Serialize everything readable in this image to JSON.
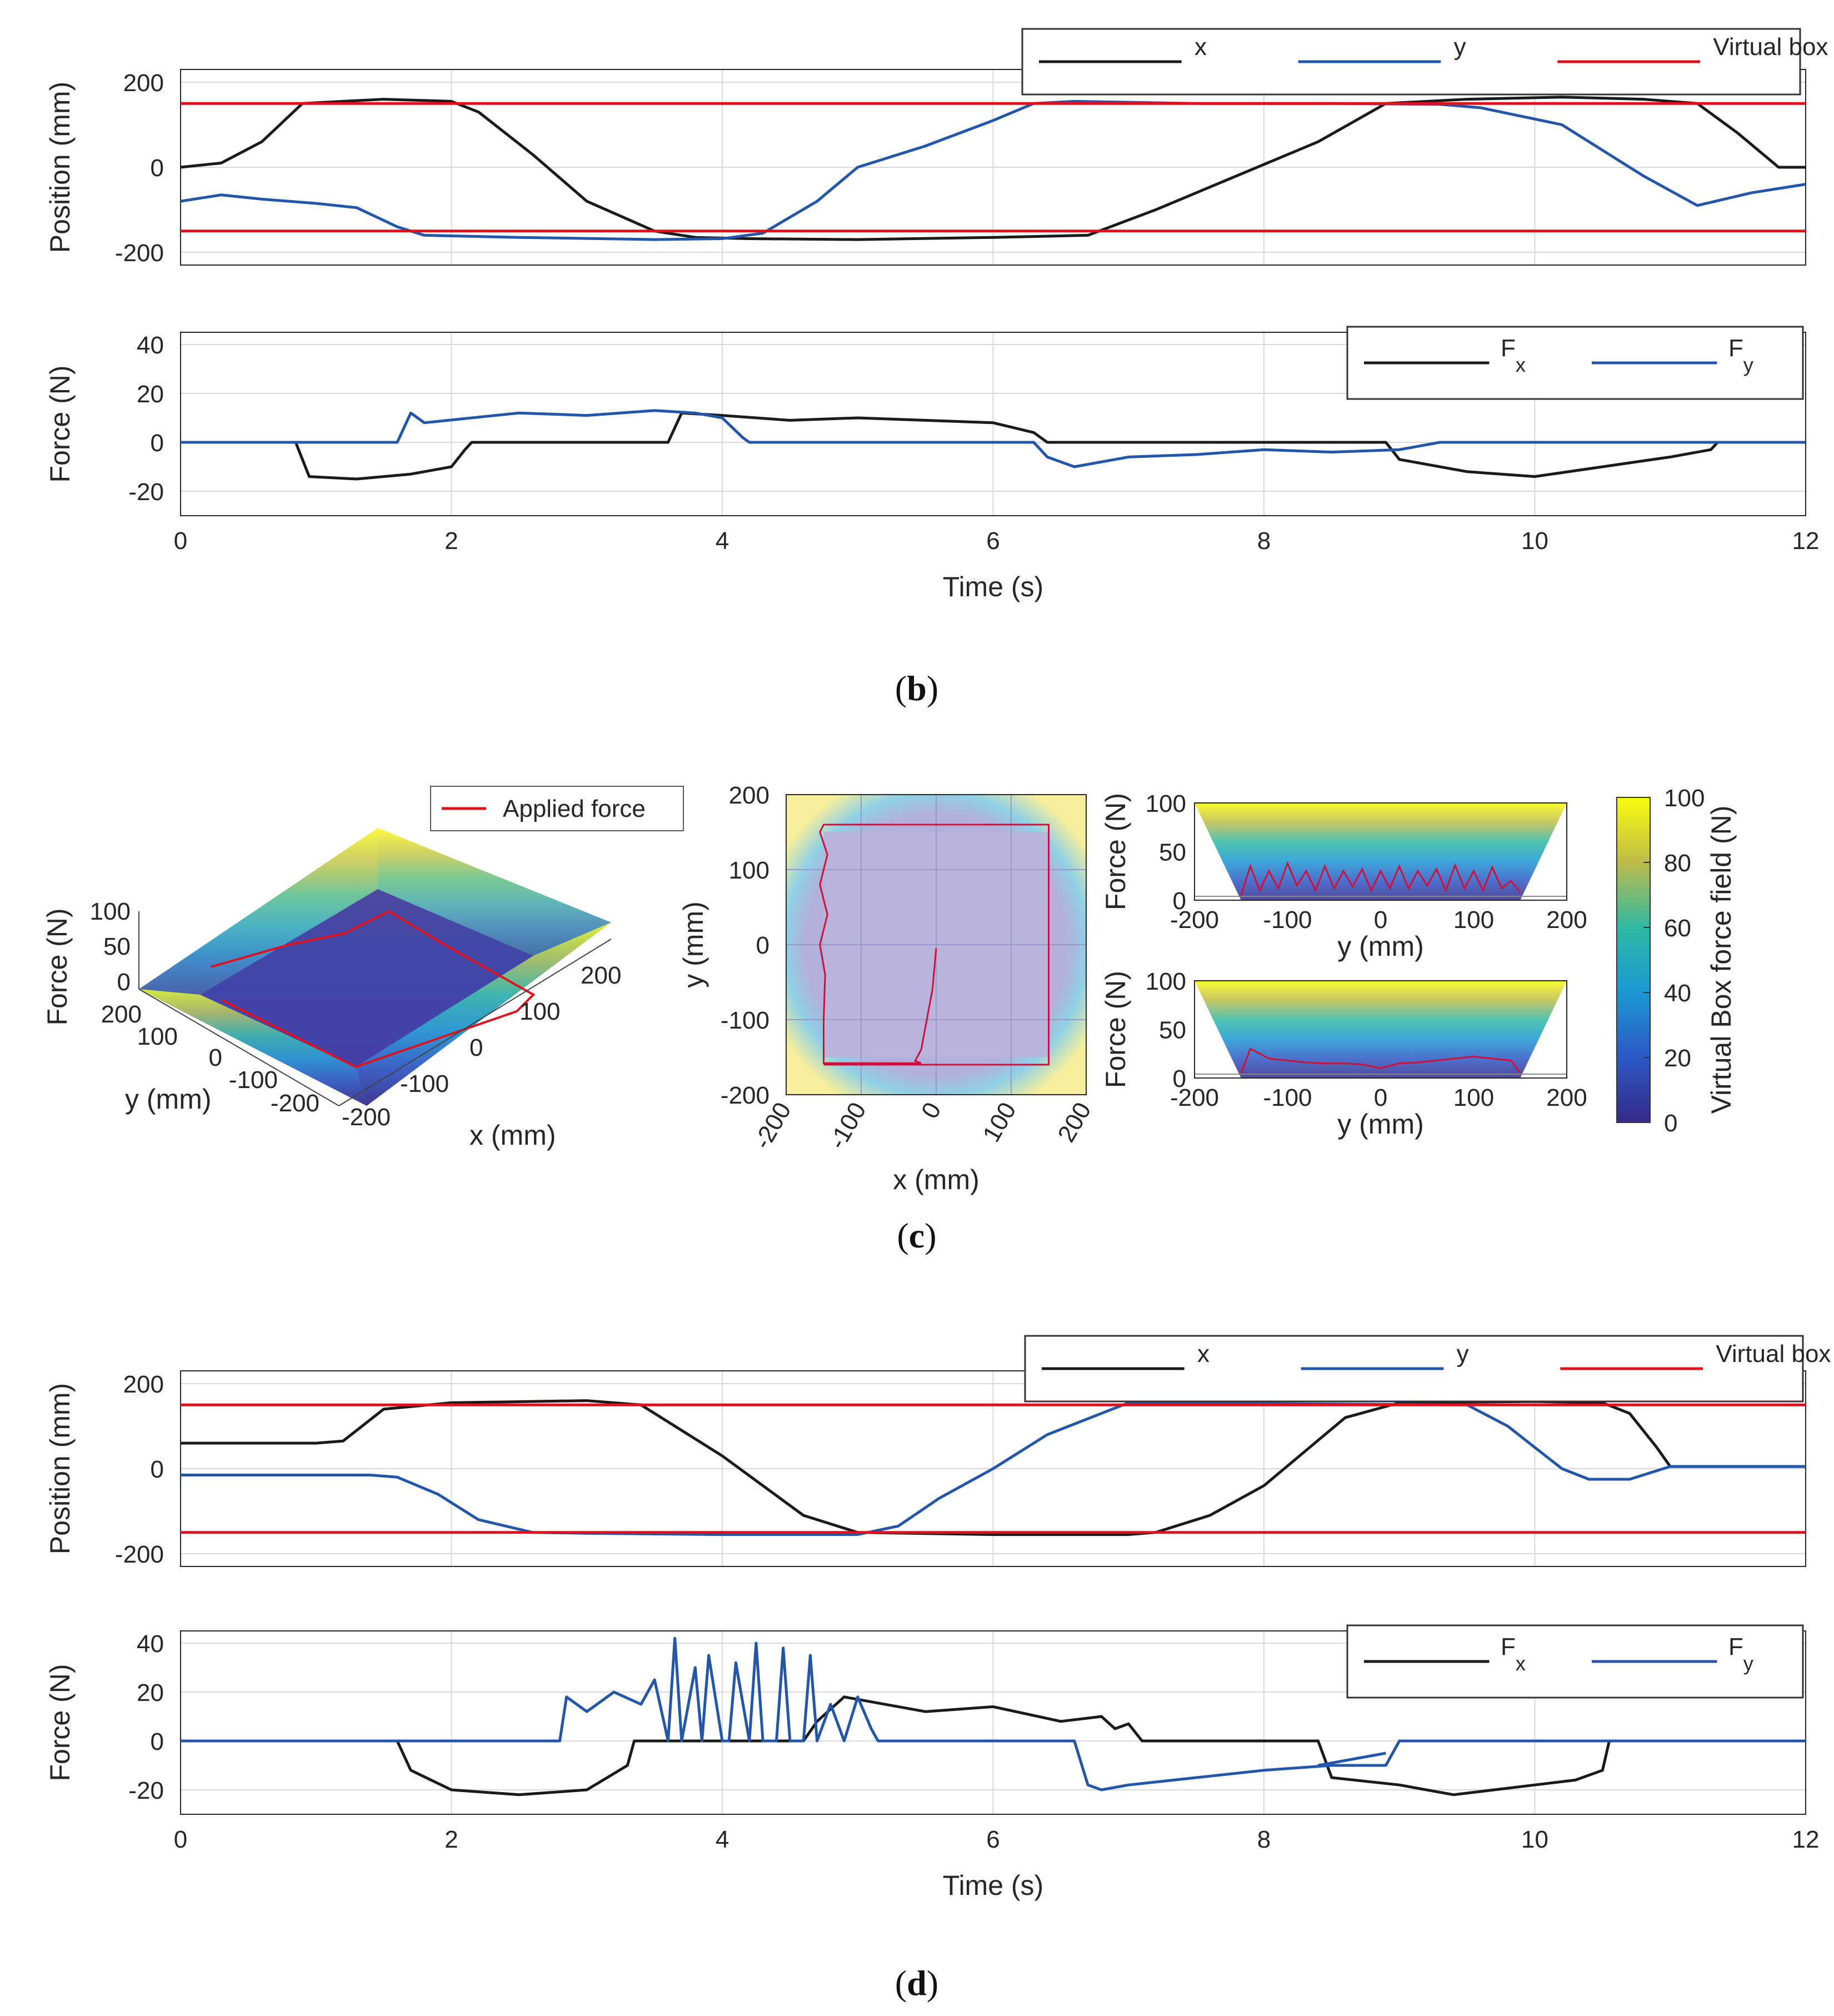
{
  "figure": {
    "panel_b": "b",
    "panel_c": "c",
    "panel_d": "d",
    "colors": {
      "x": "#1a1a1a",
      "y": "#2356a8",
      "box": "#e0111c",
      "grid": "#d9d9d9"
    }
  },
  "chart_data": [
    {
      "id": "b_position",
      "type": "line",
      "ylabel": "Position (mm)",
      "xlim": [
        0,
        12
      ],
      "ylim": [
        -230,
        230
      ],
      "yticks": [
        -200,
        0,
        200
      ],
      "ytick_labels": [
        "-200",
        "0",
        "200"
      ],
      "legend": [
        "x",
        "y",
        "Virtual box"
      ],
      "series": [
        {
          "name": "x",
          "x": [
            0,
            0.3,
            0.6,
            0.9,
            1.5,
            2.0,
            2.2,
            2.6,
            3.0,
            3.5,
            3.8,
            4.2,
            5.0,
            6.0,
            6.7,
            7.2,
            7.8,
            8.4,
            8.9,
            9.5,
            10.2,
            10.8,
            11.2,
            11.5,
            11.8,
            12
          ],
          "y": [
            0,
            10,
            60,
            150,
            160,
            155,
            130,
            30,
            -80,
            -150,
            -165,
            -168,
            -170,
            -165,
            -160,
            -100,
            -20,
            60,
            150,
            160,
            165,
            160,
            150,
            80,
            0,
            0
          ]
        },
        {
          "name": "y",
          "x": [
            0,
            0.3,
            0.6,
            1.0,
            1.3,
            1.6,
            1.8,
            2.5,
            3.5,
            4.0,
            4.3,
            4.7,
            5.0,
            5.5,
            6.0,
            6.3,
            6.6,
            7.5,
            8.5,
            9.3,
            9.6,
            10.2,
            10.8,
            11.2,
            11.6,
            12
          ],
          "y": [
            -80,
            -65,
            -75,
            -85,
            -95,
            -140,
            -160,
            -165,
            -170,
            -168,
            -155,
            -80,
            0,
            50,
            110,
            150,
            155,
            150,
            150,
            148,
            140,
            100,
            -20,
            -90,
            -60,
            -40
          ]
        },
        {
          "name": "Virtual box",
          "x": [
            0,
            12
          ],
          "y": [
            150,
            150
          ]
        },
        {
          "name": "Virtual box",
          "x": [
            0,
            12
          ],
          "y": [
            -150,
            -150
          ]
        }
      ]
    },
    {
      "id": "b_force",
      "type": "line",
      "ylabel": "Force (N)",
      "xlabel": "Time (s)",
      "xlim": [
        0,
        12
      ],
      "ylim": [
        -30,
        45
      ],
      "xticks": [
        0,
        2,
        4,
        6,
        8,
        10,
        12
      ],
      "xtick_labels": [
        "0",
        "2",
        "4",
        "6",
        "8",
        "10",
        "12"
      ],
      "yticks": [
        -20,
        0,
        20,
        40
      ],
      "ytick_labels": [
        "-20",
        "0",
        "20",
        "40"
      ],
      "legend": [
        "F",
        "F"
      ],
      "legend_sub": [
        "x",
        "y"
      ],
      "series": [
        {
          "name": "Fx",
          "x": [
            0,
            0.85,
            0.95,
            1.3,
            1.7,
            2.0,
            2.1,
            2.15,
            3.6,
            3.7,
            4.0,
            4.5,
            5.0,
            5.5,
            6.0,
            6.3,
            6.4,
            8.9,
            9.0,
            9.5,
            10.0,
            10.5,
            11.0,
            11.3,
            11.35,
            12
          ],
          "y": [
            0,
            0,
            -14,
            -15,
            -13,
            -10,
            -3,
            0,
            0,
            12,
            11,
            9,
            10,
            9,
            8,
            4,
            0,
            0,
            -7,
            -12,
            -14,
            -10,
            -6,
            -3,
            0,
            0
          ]
        },
        {
          "name": "Fy",
          "x": [
            0,
            1.6,
            1.7,
            1.8,
            2.5,
            3.0,
            3.5,
            3.8,
            4.0,
            4.15,
            4.2,
            6.3,
            6.4,
            6.6,
            7.0,
            7.5,
            8.0,
            8.5,
            9.0,
            9.3,
            12
          ],
          "y": [
            0,
            0,
            12,
            8,
            12,
            11,
            13,
            12,
            10,
            2,
            0,
            0,
            -6,
            -10,
            -6,
            -5,
            -3,
            -4,
            -3,
            0,
            0
          ]
        }
      ]
    },
    {
      "id": "c_3d",
      "type": "surface",
      "title": "",
      "xlabel": "x (mm)",
      "ylabel": "y (mm)",
      "zlabel": "Force (N)",
      "xticks": [
        -200,
        -100,
        0,
        100,
        200
      ],
      "xtick_labels": [
        "-200",
        "-100",
        "0",
        "100",
        "200"
      ],
      "yticks": [
        -200,
        -100,
        0,
        100,
        200
      ],
      "ytick_labels": [
        "-200",
        "-100",
        "0",
        "100",
        "200"
      ],
      "zticks": [
        0,
        50,
        100
      ],
      "ztick_labels": [
        "0",
        "50",
        "100"
      ],
      "legend": [
        "Applied force"
      ]
    },
    {
      "id": "c_top",
      "type": "heatmap",
      "xlabel": "x (mm)",
      "ylabel": "y (mm)",
      "xlim": [
        -200,
        200
      ],
      "ylim": [
        -200,
        200
      ],
      "xticks": [
        -200,
        -100,
        0,
        100,
        200
      ],
      "xtick_labels": [
        "-200",
        "-100",
        "0",
        "100",
        "200"
      ],
      "yticks": [
        -200,
        -100,
        0,
        100,
        200
      ],
      "ytick_labels": [
        "-200",
        "-100",
        "0",
        "100",
        "200"
      ],
      "series": [
        {
          "name": "path",
          "x": [
            0,
            -5,
            -20,
            -28,
            -20,
            -150,
            -150,
            -148,
            -155,
            -145,
            -155,
            -145,
            -155,
            -150,
            150,
            150,
            -150
          ],
          "y": [
            -5,
            -60,
            -140,
            -155,
            -158,
            -158,
            -100,
            -40,
            0,
            40,
            80,
            120,
            150,
            160,
            160,
            -160,
            -160
          ]
        }
      ]
    },
    {
      "id": "c_side_top",
      "type": "area",
      "xlabel": "y (mm)",
      "ylabel": "Force (N)",
      "xlim": [
        -200,
        200
      ],
      "ylim": [
        0,
        100
      ],
      "xticks": [
        -200,
        -100,
        0,
        100,
        200
      ],
      "xtick_labels": [
        "-200",
        "-100",
        "0",
        "100",
        "200"
      ],
      "yticks": [
        0,
        50,
        100
      ],
      "ytick_labels": [
        "0",
        "50",
        "100"
      ],
      "series": [
        {
          "name": "profile",
          "x": [
            -200,
            -150,
            150,
            200
          ],
          "y": [
            100,
            0,
            0,
            100
          ]
        },
        {
          "name": "force",
          "x": [
            -150,
            -140,
            -130,
            -120,
            -110,
            -100,
            -90,
            -80,
            -70,
            -60,
            -50,
            -40,
            -30,
            -20,
            -10,
            0,
            10,
            20,
            30,
            40,
            50,
            60,
            70,
            80,
            90,
            100,
            110,
            120,
            130,
            140,
            150
          ],
          "y": [
            5,
            35,
            10,
            30,
            12,
            38,
            15,
            30,
            10,
            35,
            12,
            30,
            14,
            32,
            10,
            30,
            12,
            35,
            12,
            30,
            15,
            32,
            10,
            36,
            12,
            30,
            10,
            34,
            12,
            20,
            8
          ]
        }
      ]
    },
    {
      "id": "c_side_bottom",
      "type": "area",
      "xlabel": "y (mm)",
      "ylabel": "Force (N)",
      "xlim": [
        -200,
        200
      ],
      "ylim": [
        0,
        100
      ],
      "xticks": [
        -200,
        -100,
        0,
        100,
        200
      ],
      "xtick_labels": [
        "-200",
        "-100",
        "0",
        "100",
        "200"
      ],
      "yticks": [
        0,
        50,
        100
      ],
      "ytick_labels": [
        "0",
        "50",
        "100"
      ],
      "series": [
        {
          "name": "profile",
          "x": [
            -200,
            -150,
            150,
            200
          ],
          "y": [
            100,
            0,
            0,
            100
          ]
        },
        {
          "name": "force",
          "x": [
            -150,
            -140,
            -120,
            -100,
            -80,
            -60,
            -40,
            -20,
            0,
            20,
            40,
            60,
            80,
            100,
            120,
            140,
            150
          ],
          "y": [
            5,
            30,
            20,
            18,
            16,
            15,
            15,
            14,
            10,
            15,
            16,
            18,
            20,
            22,
            20,
            18,
            5
          ]
        }
      ]
    },
    {
      "id": "c_colorbar",
      "type": "heatmap",
      "ylabel": "Virtual Box force field (N)",
      "ylim": [
        0,
        100
      ],
      "yticks": [
        0,
        20,
        40,
        60,
        80,
        100
      ],
      "ytick_labels": [
        "0",
        "20",
        "40",
        "60",
        "80",
        "100"
      ]
    },
    {
      "id": "d_position",
      "type": "line",
      "ylabel": "Position (mm)",
      "xlim": [
        0,
        12
      ],
      "ylim": [
        -230,
        230
      ],
      "yticks": [
        -200,
        0,
        200
      ],
      "ytick_labels": [
        "-200",
        "0",
        "200"
      ],
      "legend": [
        "x",
        "y",
        "Virtual box"
      ],
      "series": [
        {
          "name": "x",
          "x": [
            0,
            1.0,
            1.2,
            1.5,
            2.0,
            3.0,
            3.4,
            3.7,
            4.0,
            4.3,
            4.6,
            5.0,
            6.0,
            7.0,
            7.2,
            7.6,
            8.0,
            8.3,
            8.6,
            9.0,
            10.0,
            10.5,
            10.7,
            10.9,
            11.0,
            12
          ],
          "y": [
            60,
            60,
            65,
            140,
            155,
            160,
            150,
            90,
            30,
            -40,
            -110,
            -150,
            -155,
            -155,
            -150,
            -110,
            -40,
            40,
            120,
            155,
            158,
            155,
            130,
            50,
            5,
            5
          ]
        },
        {
          "name": "y",
          "x": [
            0,
            1.4,
            1.6,
            1.9,
            2.2,
            2.6,
            3.0,
            4.0,
            5.0,
            5.3,
            5.6,
            6.0,
            6.4,
            7.0,
            9.5,
            9.8,
            10.2,
            10.4,
            10.7,
            11.0,
            12
          ],
          "y": [
            -15,
            -15,
            -20,
            -60,
            -120,
            -150,
            -152,
            -155,
            -155,
            -135,
            -70,
            0,
            80,
            155,
            150,
            100,
            0,
            -25,
            -25,
            5,
            5
          ]
        },
        {
          "name": "Virtual box",
          "x": [
            0,
            12
          ],
          "y": [
            150,
            150
          ]
        },
        {
          "name": "Virtual box",
          "x": [
            0,
            12
          ],
          "y": [
            -150,
            -150
          ]
        }
      ]
    },
    {
      "id": "d_force",
      "type": "line",
      "ylabel": "Force (N)",
      "xlabel": "Time (s)",
      "xlim": [
        0,
        12
      ],
      "ylim": [
        -30,
        45
      ],
      "xticks": [
        0,
        2,
        4,
        6,
        8,
        10,
        12
      ],
      "xtick_labels": [
        "0",
        "2",
        "4",
        "6",
        "8",
        "10",
        "12"
      ],
      "yticks": [
        -20,
        0,
        20,
        40
      ],
      "ytick_labels": [
        "-20",
        "0",
        "20",
        "40"
      ],
      "legend": [
        "F",
        "F"
      ],
      "legend_sub": [
        "x",
        "y"
      ],
      "series": [
        {
          "name": "Fx",
          "x": [
            0,
            1.6,
            1.7,
            2.0,
            2.5,
            3.0,
            3.3,
            3.35,
            4.6,
            4.7,
            4.9,
            5.5,
            6.0,
            6.5,
            6.8,
            6.9,
            7.0,
            7.1,
            8.4,
            8.5,
            9.0,
            9.4,
            10.0,
            10.3,
            10.5,
            10.55,
            12
          ],
          "y": [
            0,
            0,
            -12,
            -20,
            -22,
            -20,
            -10,
            0,
            0,
            8,
            18,
            12,
            14,
            8,
            10,
            5,
            7,
            0,
            0,
            -15,
            -18,
            -22,
            -18,
            -16,
            -12,
            0,
            0
          ]
        },
        {
          "name": "Fy",
          "x": [
            0,
            2.8,
            2.85,
            3.0,
            3.2,
            3.4,
            3.5,
            3.6,
            3.65,
            3.7,
            3.8,
            3.85,
            3.9,
            4.0,
            4.05,
            4.1,
            4.2,
            4.25,
            4.3,
            4.4,
            4.45,
            4.5,
            4.6,
            4.65,
            4.7,
            4.8,
            4.9,
            5.0,
            5.1,
            5.15,
            6.6,
            6.7,
            6.8,
            7.0,
            7.5,
            8.0,
            8.5,
            8.9,
            9.0,
            12
          ],
          "y": [
            0,
            0,
            18,
            12,
            20,
            15,
            25,
            0,
            42,
            0,
            30,
            0,
            35,
            0,
            0,
            32,
            0,
            40,
            0,
            0,
            38,
            0,
            0,
            35,
            0,
            15,
            0,
            18,
            5,
            0,
            0,
            -18,
            -20,
            -18,
            -15,
            -12,
            -10,
            -10,
            0,
            0
          ]
        },
        {
          "name": "Fy-step",
          "x": [
            8.4,
            8.9
          ],
          "y": [
            -10,
            -5
          ]
        }
      ]
    }
  ]
}
